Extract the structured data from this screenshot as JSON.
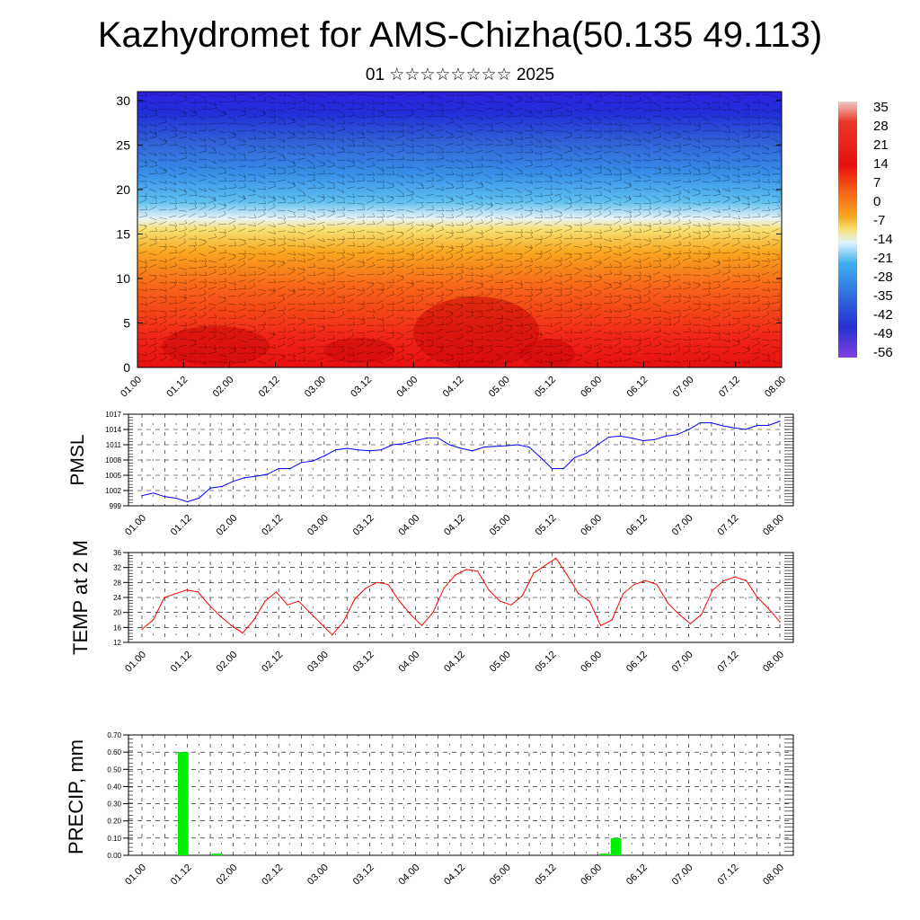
{
  "title": "Kazhydromet for AMS-Chizha(50.135 49.113)",
  "subtitle": "01 ☆☆☆☆☆☆☆☆ 2025",
  "time_labels": [
    "01.00",
    "01.12",
    "02.00",
    "02.12",
    "03.00",
    "03.12",
    "04.00",
    "04.12",
    "05.00",
    "05.12",
    "06.00",
    "06.12",
    "07.00",
    "07.12",
    "08.00"
  ],
  "chart_data": [
    {
      "type": "heatmap",
      "name": "cross-section",
      "ylabel": "",
      "x_ticks": [
        "01.00",
        "01.12",
        "02.00",
        "02.12",
        "03.00",
        "03.12",
        "04.00",
        "04.12",
        "05.00",
        "05.12",
        "06.00",
        "06.12",
        "07.00",
        "07.12",
        "08.00"
      ],
      "y_ticks": [
        0,
        5,
        10,
        15,
        20,
        25,
        30
      ],
      "ylim": [
        0,
        31
      ],
      "colorbar": {
        "labels": [
          "35",
          "28",
          "21",
          "14",
          "7",
          "0",
          "-7",
          "-14",
          "-21",
          "-28",
          "-35",
          "-42",
          "-49",
          "-56"
        ],
        "colors": [
          "#f4c8c8",
          "#e83020",
          "#d81010",
          "#f03018",
          "#f86018",
          "#f89820",
          "#f8c830",
          "#f8f080",
          "#d8f0f8",
          "#40b0f0",
          "#3080e8",
          "#3050d0",
          "#2020d0",
          "#8040e0"
        ]
      }
    },
    {
      "type": "line",
      "name": "PMSL",
      "ylabel": "PMSL",
      "ylim": [
        999,
        1017
      ],
      "y_ticks": [
        999,
        1002,
        1005,
        1008,
        1011,
        1014,
        1017
      ],
      "x_ticks": [
        "01.00",
        "01.12",
        "02.00",
        "02.12",
        "03.00",
        "03.12",
        "04.00",
        "04.12",
        "05.00",
        "05.12",
        "06.00",
        "06.12",
        "07.00",
        "07.12",
        "08.00"
      ],
      "color": "#0000ff",
      "values": [
        1001,
        1001.5,
        1000.8,
        1000.5,
        999.8,
        1000.5,
        1002.5,
        1002.8,
        1003.8,
        1004.5,
        1004.8,
        1005.2,
        1006.3,
        1006.3,
        1007.5,
        1007.8,
        1008.8,
        1010,
        1010.3,
        1010,
        1009.8,
        1010,
        1011,
        1011.2,
        1011.8,
        1012.3,
        1012.3,
        1011,
        1010.3,
        1009.8,
        1010.5,
        1010.7,
        1010.8,
        1011,
        1010.5,
        1008.5,
        1006.3,
        1006.3,
        1008.5,
        1009.3,
        1011,
        1012.5,
        1012.7,
        1012.3,
        1011.8,
        1012,
        1012.7,
        1013,
        1014,
        1015.3,
        1015.3,
        1014.7,
        1014.3,
        1014,
        1014.8,
        1014.8,
        1015.6
      ]
    },
    {
      "type": "line",
      "name": "TEMP at 2 M",
      "ylabel": "TEMP at 2 M",
      "ylim": [
        12,
        36
      ],
      "y_ticks": [
        12,
        16,
        20,
        24,
        28,
        32,
        36
      ],
      "x_ticks": [
        "01.00",
        "01.12",
        "02.00",
        "02.12",
        "03.00",
        "03.12",
        "04.00",
        "04.12",
        "05.00",
        "05.12",
        "06.00",
        "06.12",
        "07.00",
        "07.12",
        "08.00"
      ],
      "color": "#ff0000",
      "values": [
        15.5,
        18,
        24,
        25,
        26,
        25.5,
        22,
        19,
        16.5,
        14.5,
        18,
        23,
        25.5,
        22,
        23,
        20,
        17,
        14,
        17.5,
        23.5,
        26.5,
        28,
        27.5,
        23,
        19.5,
        16.5,
        20,
        26.5,
        30,
        31.5,
        31,
        26,
        23,
        22,
        24.5,
        30.5,
        32.5,
        34.5,
        30,
        25,
        23,
        16.5,
        18,
        25,
        27.5,
        28.5,
        27.5,
        22.5,
        19.5,
        17,
        19.5,
        26,
        28.5,
        29.5,
        28.5,
        24,
        21,
        17.5
      ]
    },
    {
      "type": "bar",
      "name": "PRECIP, mm",
      "ylabel": "PRECIP, mm",
      "ylim": [
        0,
        0.7
      ],
      "y_ticks": [
        "0.00",
        "0.10",
        "0.20",
        "0.30",
        "0.40",
        "0.50",
        "0.60",
        "0.70"
      ],
      "x_ticks": [
        "01.00",
        "01.12",
        "02.00",
        "02.12",
        "03.00",
        "03.12",
        "04.00",
        "04.12",
        "05.00",
        "05.12",
        "06.00",
        "06.12",
        "07.00",
        "07.12",
        "08.00"
      ],
      "color": "#00ee00",
      "bars": [
        {
          "t": 3,
          "value": 0.6
        },
        {
          "t": 6,
          "value": 0.01
        },
        {
          "t": 40,
          "value": 0.01
        },
        {
          "t": 41,
          "value": 0.1
        }
      ]
    }
  ]
}
